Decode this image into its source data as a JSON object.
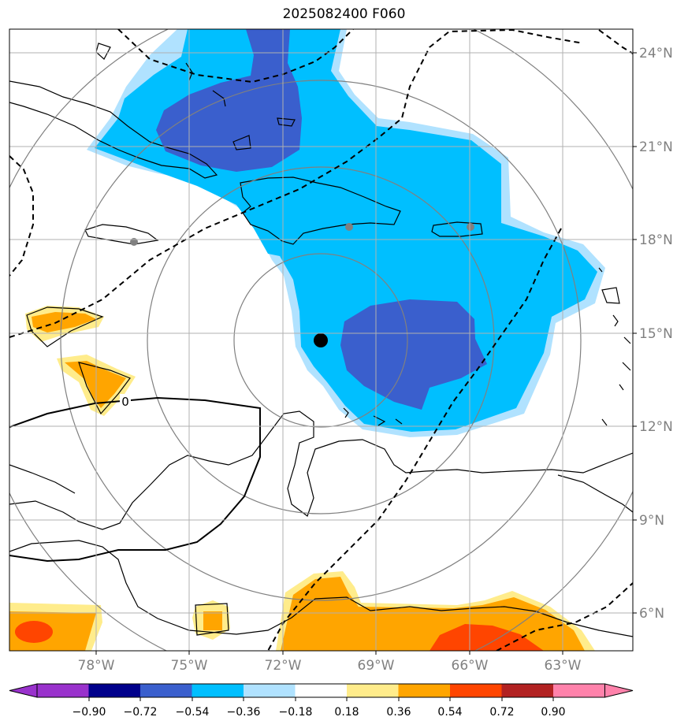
{
  "title": "2025082400 F060",
  "map": {
    "lat_labels": [
      "24°N",
      "21°N",
      "18°N",
      "15°N",
      "12°N",
      "9°N",
      "6°N"
    ],
    "lon_labels": [
      "78°W",
      "75°W",
      "72°W",
      "69°W",
      "66°W",
      "63°W"
    ],
    "contour_label": "0",
    "center_marker": "black-dot",
    "city_markers": "grey-dots",
    "range_rings": 4
  },
  "colorbar": {
    "ticks": [
      "−0.90",
      "−0.72",
      "−0.54",
      "−0.36",
      "−0.18",
      "0.18",
      "0.36",
      "0.54",
      "0.72",
      "0.90"
    ],
    "colors": [
      "#9932cc",
      "#00008b",
      "#3a5fcd",
      "#00bfff",
      "#b0e2ff",
      "#ffffff",
      "#ffec8b",
      "#ffa500",
      "#ff4500",
      "#b22222",
      "#ff82ab"
    ]
  }
}
